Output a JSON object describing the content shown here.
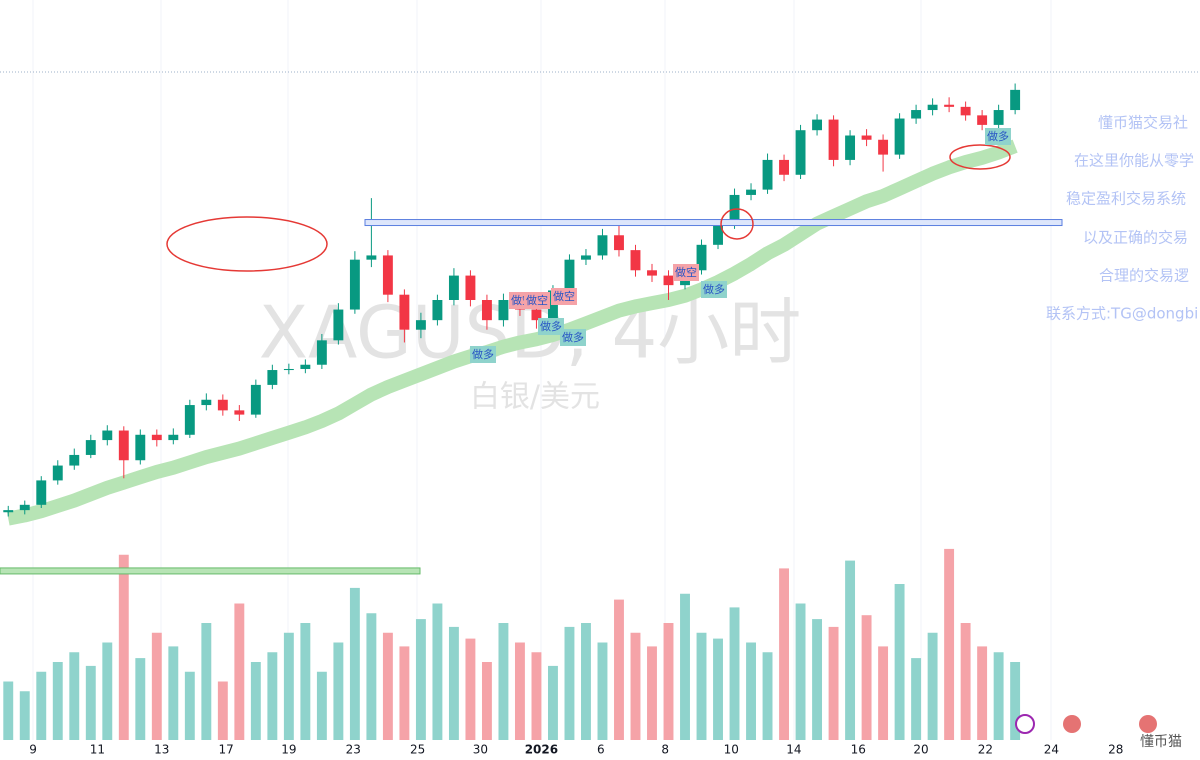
{
  "chart_data": {
    "type": "candlestick",
    "watermark": "XAGUSD, 4小时",
    "watermark_subtitle": "白银/美元",
    "open": [
      57.8,
      58.0,
      58.5,
      60.8,
      62.2,
      63.2,
      64.6,
      65.5,
      62.7,
      65.1,
      64.6,
      65.1,
      67.9,
      68.4,
      67.4,
      67.0,
      69.8,
      71.2,
      71.3,
      71.7,
      74.0,
      76.9,
      81.6,
      82.0,
      78.3,
      75.0,
      75.9,
      77.8,
      80.1,
      77.8,
      75.9,
      77.8,
      76.9,
      75.9,
      78.7,
      81.6,
      82.0,
      83.9,
      82.5,
      80.6,
      80.1,
      79.2,
      80.6,
      83.0,
      84.9,
      87.7,
      88.2,
      91.0,
      89.6,
      93.8,
      94.8,
      91.0,
      93.3,
      92.9,
      91.5,
      94.9,
      95.7,
      96.2,
      96.0,
      95.2,
      94.3,
      95.7
    ],
    "high": [
      58.4,
      58.9,
      61.2,
      62.7,
      63.8,
      65.1,
      66.0,
      65.9,
      65.6,
      65.6,
      65.7,
      68.4,
      69.0,
      68.9,
      67.9,
      70.3,
      71.7,
      71.8,
      72.2,
      74.6,
      77.5,
      82.4,
      87.4,
      82.5,
      78.8,
      76.6,
      78.3,
      80.8,
      80.6,
      78.3,
      78.4,
      78.5,
      77.4,
      79.2,
      82.1,
      82.6,
      84.5,
      84.9,
      83.0,
      81.2,
      80.6,
      81.1,
      83.5,
      85.4,
      88.3,
      88.8,
      91.6,
      91.5,
      94.3,
      95.3,
      95.2,
      93.8,
      93.9,
      93.4,
      95.4,
      96.2,
      96.8,
      96.9,
      96.5,
      95.7,
      96.2,
      98.2
    ],
    "low": [
      57.4,
      57.6,
      58.2,
      60.4,
      61.8,
      62.9,
      64.1,
      61.0,
      62.3,
      64.0,
      64.2,
      64.8,
      67.4,
      66.9,
      66.4,
      66.7,
      69.4,
      70.8,
      70.9,
      71.3,
      73.6,
      76.5,
      80.9,
      77.6,
      73.8,
      74.2,
      75.4,
      77.3,
      77.2,
      75.0,
      75.3,
      76.3,
      75.1,
      75.5,
      78.3,
      81.1,
      81.6,
      81.9,
      80.0,
      79.5,
      77.8,
      78.8,
      80.2,
      82.6,
      84.5,
      87.2,
      87.8,
      89.0,
      89.2,
      93.3,
      90.4,
      90.5,
      92.3,
      89.9,
      91.1,
      94.4,
      95.2,
      95.5,
      94.7,
      93.8,
      93.9,
      95.3
    ],
    "close": [
      58.0,
      58.5,
      60.8,
      62.2,
      63.2,
      64.6,
      65.5,
      62.7,
      65.1,
      64.6,
      65.1,
      67.9,
      68.4,
      67.4,
      67.0,
      69.8,
      71.2,
      71.3,
      71.7,
      74.0,
      76.9,
      81.6,
      82.0,
      78.3,
      75.0,
      75.9,
      77.8,
      80.1,
      77.8,
      75.9,
      77.8,
      76.9,
      75.9,
      78.7,
      81.6,
      82.0,
      83.9,
      82.5,
      80.6,
      80.1,
      79.2,
      80.6,
      83.0,
      84.9,
      87.7,
      88.2,
      91.0,
      89.6,
      93.8,
      94.8,
      91.0,
      93.3,
      92.9,
      91.5,
      94.9,
      95.7,
      96.2,
      96.0,
      95.2,
      94.3,
      95.7,
      97.6
    ],
    "ma": [
      57.2,
      57.5,
      57.9,
      58.4,
      58.9,
      59.5,
      60.1,
      60.6,
      61.1,
      61.6,
      62.0,
      62.5,
      63.0,
      63.4,
      63.8,
      64.3,
      64.8,
      65.3,
      65.8,
      66.4,
      67.1,
      68.0,
      68.9,
      69.6,
      70.2,
      70.8,
      71.4,
      72.0,
      72.5,
      72.9,
      73.4,
      73.8,
      74.1,
      74.5,
      75.0,
      75.6,
      76.2,
      76.8,
      77.2,
      77.5,
      77.8,
      78.2,
      78.8,
      79.5,
      80.3,
      81.2,
      82.2,
      83.0,
      84.0,
      85.0,
      85.7,
      86.4,
      87.1,
      87.6,
      88.3,
      89.0,
      89.7,
      90.3,
      90.8,
      91.2,
      91.7,
      92.3
    ],
    "volume": [
      30,
      25,
      35,
      40,
      45,
      38,
      50,
      95,
      42,
      55,
      48,
      35,
      60,
      30,
      70,
      40,
      45,
      55,
      60,
      35,
      50,
      78,
      65,
      55,
      48,
      62,
      70,
      58,
      52,
      40,
      60,
      50,
      45,
      38,
      58,
      60,
      50,
      72,
      55,
      48,
      60,
      75,
      55,
      52,
      68,
      50,
      45,
      88,
      70,
      62,
      58,
      92,
      64,
      48,
      80,
      42,
      55,
      98,
      60,
      48,
      45,
      40
    ],
    "ylim": [
      53.3,
      102.3
    ],
    "volume_ylim": [
      0,
      100
    ],
    "xlim": [
      -0.5,
      72.2
    ],
    "xticks": [
      {
        "value": 1.5,
        "label": "9"
      },
      {
        "value": 5.4,
        "label": "11"
      },
      {
        "value": 9.3,
        "label": "13"
      },
      {
        "value": 13.2,
        "label": "17"
      },
      {
        "value": 17.0,
        "label": "19"
      },
      {
        "value": 20.9,
        "label": "23"
      },
      {
        "value": 24.8,
        "label": "25"
      },
      {
        "value": 28.6,
        "label": "30"
      },
      {
        "value": 32.3,
        "label": "2026"
      },
      {
        "value": 35.9,
        "label": "6"
      },
      {
        "value": 39.8,
        "label": "8"
      },
      {
        "value": 43.8,
        "label": "10"
      },
      {
        "value": 47.6,
        "label": "14"
      },
      {
        "value": 51.5,
        "label": "16"
      },
      {
        "value": 55.3,
        "label": "20"
      },
      {
        "value": 59.2,
        "label": "22"
      },
      {
        "value": 63.2,
        "label": "24"
      },
      {
        "value": 67.1,
        "label": "28"
      }
    ],
    "levels": [
      85.1
    ],
    "volume_levels": [
      86.7
    ],
    "up_color": "#089981",
    "down_color": "#f23645",
    "volume_up_color": "#8fd3cc",
    "volume_down_color": "#f5a3a8",
    "ma_color": "#b7e4b5",
    "level_color": "#5b7fe0",
    "signals": [
      "做多",
      "做空",
      "做空",
      "做空",
      "做多",
      "做多",
      "做空",
      "做多",
      "做多"
    ],
    "side_notes": [
      "懂币猫交易社",
      "在这里你能从零学",
      "稳定盈利交易系统",
      "以及正确的交易",
      "合理的交易逻",
      "联系方式:TG@dongbi"
    ],
    "footer": "懂币猫"
  }
}
